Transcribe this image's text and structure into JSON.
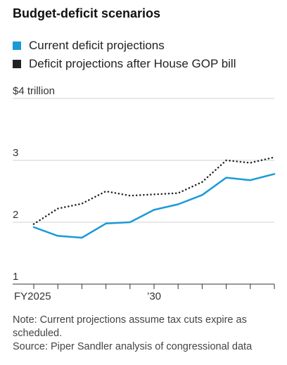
{
  "chart_data": {
    "type": "line",
    "title": "Budget-deficit scenarios",
    "x": [
      2025,
      2026,
      2027,
      2028,
      2029,
      2030,
      2031,
      2032,
      2033,
      2034,
      2035
    ],
    "x_tick_labels": [
      {
        "x": 2025,
        "label": "FY2025"
      },
      {
        "x": 2026,
        "label": ""
      },
      {
        "x": 2027,
        "label": ""
      },
      {
        "x": 2028,
        "label": ""
      },
      {
        "x": 2029,
        "label": ""
      },
      {
        "x": 2030,
        "label": "’30"
      },
      {
        "x": 2031,
        "label": ""
      },
      {
        "x": 2032,
        "label": ""
      },
      {
        "x": 2033,
        "label": ""
      },
      {
        "x": 2034,
        "label": ""
      },
      {
        "x": 2035,
        "label": ""
      }
    ],
    "y_ticks": [
      {
        "value": 4,
        "label": "$4 trillion"
      },
      {
        "value": 3,
        "label": "3"
      },
      {
        "value": 2,
        "label": "2"
      },
      {
        "value": 1,
        "label": "1"
      }
    ],
    "ylim": [
      1,
      4
    ],
    "xlim": [
      2025,
      2035
    ],
    "grid": true,
    "legend_position": "top-left",
    "series": [
      {
        "name": "Current deficit projections",
        "color": "#1a9bd7",
        "style": "solid",
        "values": [
          1.92,
          1.78,
          1.75,
          1.98,
          2.0,
          2.2,
          2.29,
          2.44,
          2.72,
          2.68,
          2.78
        ]
      },
      {
        "name": "Deficit projections after House GOP bill",
        "color": "#222222",
        "style": "dotted",
        "values": [
          1.97,
          2.22,
          2.3,
          2.5,
          2.43,
          2.45,
          2.47,
          2.65,
          3.0,
          2.96,
          3.05
        ]
      }
    ]
  },
  "notes": {
    "note": "Note: Current projections assume tax cuts expire as scheduled.",
    "source": "Source: Piper Sandler analysis of congressional data"
  }
}
